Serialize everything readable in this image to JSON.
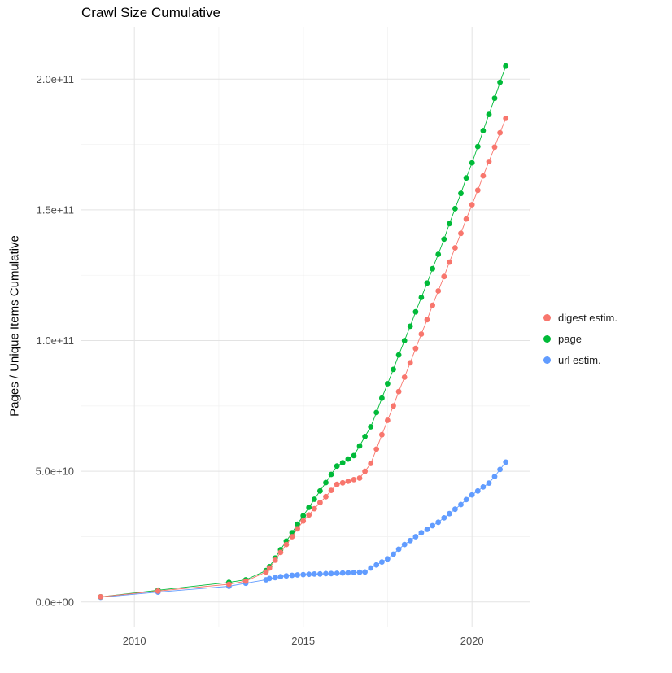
{
  "chart_data": {
    "type": "scatter",
    "title": "Crawl Size Cumulative",
    "xlabel": "",
    "ylabel": "Pages / Unique Items Cumulative",
    "legend_position": "right",
    "grid": {
      "major_color": "#e3e3e3",
      "minor_color": "#f1f1f1"
    },
    "axis_text_color": "#4d4d4d",
    "y_value_unit": "items x 1e9",
    "xlim": [
      2008.43,
      2021.73
    ],
    "ylim_billions": [
      -9.4,
      220
    ],
    "x_ticks": [
      {
        "value": 2010,
        "label": "2010"
      },
      {
        "value": 2015,
        "label": "2015"
      },
      {
        "value": 2020,
        "label": "2020"
      }
    ],
    "y_ticks": [
      {
        "value": 0,
        "label": "0.0e+00"
      },
      {
        "value": 50,
        "label": "5.0e+10"
      },
      {
        "value": 100,
        "label": "1.0e+11"
      },
      {
        "value": 150,
        "label": "1.5e+11"
      },
      {
        "value": 200,
        "label": "2.0e+11"
      }
    ],
    "x_minor": [
      2012.5,
      2017.5
    ],
    "y_minor": [
      25,
      75,
      125,
      175
    ],
    "series": [
      {
        "name": "digest estim.",
        "color": "#F8766D",
        "points": [
          [
            2009.0,
            2.0
          ],
          [
            2010.7,
            4.2
          ],
          [
            2012.8,
            6.8
          ],
          [
            2013.3,
            8.0
          ],
          [
            2013.9,
            11.5
          ],
          [
            2014.0,
            13.0
          ],
          [
            2014.17,
            16.0
          ],
          [
            2014.33,
            19.0
          ],
          [
            2014.5,
            22.0
          ],
          [
            2014.67,
            25.0
          ],
          [
            2014.83,
            28.0
          ],
          [
            2015.0,
            31.0
          ],
          [
            2015.17,
            33.3
          ],
          [
            2015.33,
            35.7
          ],
          [
            2015.5,
            38.0
          ],
          [
            2015.67,
            40.3
          ],
          [
            2015.83,
            42.7
          ],
          [
            2016.0,
            45.0
          ],
          [
            2016.17,
            45.6
          ],
          [
            2016.33,
            46.2
          ],
          [
            2016.5,
            46.8
          ],
          [
            2016.67,
            47.4
          ],
          [
            2016.83,
            50.0
          ],
          [
            2017.0,
            53.0
          ],
          [
            2017.17,
            58.5
          ],
          [
            2017.33,
            64.0
          ],
          [
            2017.5,
            69.5
          ],
          [
            2017.67,
            75.0
          ],
          [
            2017.83,
            80.5
          ],
          [
            2018.0,
            86.0
          ],
          [
            2018.17,
            91.5
          ],
          [
            2018.33,
            97.0
          ],
          [
            2018.5,
            102.5
          ],
          [
            2018.67,
            108.0
          ],
          [
            2018.83,
            113.5
          ],
          [
            2019.0,
            119.0
          ],
          [
            2019.17,
            124.5
          ],
          [
            2019.33,
            130.0
          ],
          [
            2019.5,
            135.5
          ],
          [
            2019.67,
            141.0
          ],
          [
            2019.83,
            146.5
          ],
          [
            2020.0,
            152.0
          ],
          [
            2020.17,
            157.5
          ],
          [
            2020.33,
            163.0
          ],
          [
            2020.5,
            168.5
          ],
          [
            2020.67,
            174.0
          ],
          [
            2020.83,
            179.5
          ],
          [
            2021.0,
            185.0
          ]
        ]
      },
      {
        "name": "page",
        "color": "#00BA38",
        "points": [
          [
            2009.0,
            2.0
          ],
          [
            2010.7,
            4.5
          ],
          [
            2012.8,
            7.5
          ],
          [
            2013.3,
            8.5
          ],
          [
            2013.9,
            12.0
          ],
          [
            2014.0,
            13.5
          ],
          [
            2014.17,
            16.8
          ],
          [
            2014.33,
            20.0
          ],
          [
            2014.5,
            23.3
          ],
          [
            2014.67,
            26.5
          ],
          [
            2014.83,
            29.8
          ],
          [
            2015.0,
            33.0
          ],
          [
            2015.17,
            36.2
          ],
          [
            2015.33,
            39.3
          ],
          [
            2015.5,
            42.5
          ],
          [
            2015.67,
            45.7
          ],
          [
            2015.83,
            48.8
          ],
          [
            2016.0,
            52.0
          ],
          [
            2016.17,
            53.3
          ],
          [
            2016.33,
            54.7
          ],
          [
            2016.5,
            56.0
          ],
          [
            2016.67,
            59.7
          ],
          [
            2016.83,
            63.3
          ],
          [
            2017.0,
            67.0
          ],
          [
            2017.17,
            72.5
          ],
          [
            2017.33,
            78.0
          ],
          [
            2017.5,
            83.5
          ],
          [
            2017.67,
            89.0
          ],
          [
            2017.83,
            94.5
          ],
          [
            2018.0,
            100.0
          ],
          [
            2018.17,
            105.5
          ],
          [
            2018.33,
            111.0
          ],
          [
            2018.5,
            116.5
          ],
          [
            2018.67,
            122.0
          ],
          [
            2018.83,
            127.5
          ],
          [
            2019.0,
            133.0
          ],
          [
            2019.17,
            138.8
          ],
          [
            2019.33,
            144.7
          ],
          [
            2019.5,
            150.5
          ],
          [
            2019.67,
            156.3
          ],
          [
            2019.83,
            162.2
          ],
          [
            2020.0,
            168.0
          ],
          [
            2020.17,
            174.2
          ],
          [
            2020.33,
            180.3
          ],
          [
            2020.5,
            186.5
          ],
          [
            2020.67,
            192.7
          ],
          [
            2020.83,
            198.8
          ],
          [
            2021.0,
            205.0
          ]
        ]
      },
      {
        "name": "url estim.",
        "color": "#619CFF",
        "points": [
          [
            2009.0,
            1.8
          ],
          [
            2010.7,
            3.8
          ],
          [
            2012.8,
            6.0
          ],
          [
            2013.3,
            7.2
          ],
          [
            2013.9,
            8.5
          ],
          [
            2014.0,
            9.0
          ],
          [
            2014.17,
            9.3
          ],
          [
            2014.33,
            9.7
          ],
          [
            2014.5,
            10.0
          ],
          [
            2014.67,
            10.2
          ],
          [
            2014.83,
            10.35
          ],
          [
            2015.0,
            10.5
          ],
          [
            2015.17,
            10.6
          ],
          [
            2015.33,
            10.7
          ],
          [
            2015.5,
            10.75
          ],
          [
            2015.67,
            10.85
          ],
          [
            2015.83,
            10.9
          ],
          [
            2016.0,
            11.0
          ],
          [
            2016.17,
            11.1
          ],
          [
            2016.33,
            11.2
          ],
          [
            2016.5,
            11.3
          ],
          [
            2016.67,
            11.4
          ],
          [
            2016.83,
            11.5
          ],
          [
            2017.0,
            13.0
          ],
          [
            2017.17,
            14.2
          ],
          [
            2017.33,
            15.3
          ],
          [
            2017.5,
            16.5
          ],
          [
            2017.67,
            18.3
          ],
          [
            2017.83,
            20.2
          ],
          [
            2018.0,
            22.0
          ],
          [
            2018.17,
            23.5
          ],
          [
            2018.33,
            25.0
          ],
          [
            2018.5,
            26.5
          ],
          [
            2018.67,
            27.8
          ],
          [
            2018.83,
            29.2
          ],
          [
            2019.0,
            30.5
          ],
          [
            2019.17,
            32.2
          ],
          [
            2019.33,
            33.8
          ],
          [
            2019.5,
            35.5
          ],
          [
            2019.67,
            37.3
          ],
          [
            2019.83,
            39.2
          ],
          [
            2020.0,
            41.0
          ],
          [
            2020.17,
            42.5
          ],
          [
            2020.33,
            44.0
          ],
          [
            2020.5,
            45.5
          ],
          [
            2020.67,
            48.0
          ],
          [
            2020.83,
            50.7
          ],
          [
            2021.0,
            53.5
          ]
        ]
      }
    ]
  }
}
